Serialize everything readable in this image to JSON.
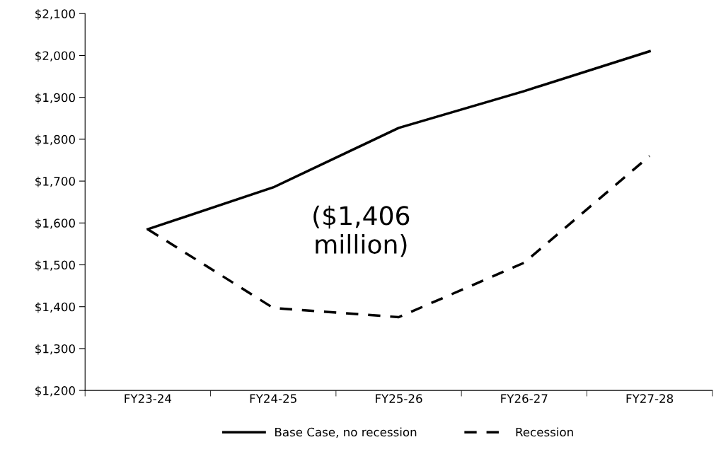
{
  "chart_data": {
    "type": "line",
    "categories": [
      "FY23-24",
      "FY24-25",
      "FY25-26",
      "FY26-27",
      "FY27-28"
    ],
    "series": [
      {
        "name": "Base Case, no recession",
        "color": "#000000",
        "line_style": "solid",
        "values": [
          1585,
          1685,
          1827,
          1915,
          2010
        ]
      },
      {
        "name": "Recession",
        "color": "#000000",
        "line_style": "dashed",
        "values": [
          1585,
          1397,
          1375,
          1505,
          1760
        ]
      }
    ],
    "ylim": [
      1200,
      2100
    ],
    "yticks": [
      {
        "value": 1200,
        "label": "$1,200"
      },
      {
        "value": 1300,
        "label": "$1,300"
      },
      {
        "value": 1400,
        "label": "$1,400"
      },
      {
        "value": 1500,
        "label": "$1,500"
      },
      {
        "value": 1600,
        "label": "$1,600"
      },
      {
        "value": 1700,
        "label": "$1,700"
      },
      {
        "value": 1800,
        "label": "$1,800"
      },
      {
        "value": 1900,
        "label": "$1,900"
      },
      {
        "value": 2000,
        "label": "$2,000"
      },
      {
        "value": 2100,
        "label": "$2,100"
      }
    ],
    "annotations": [
      "($1,406\nmillion)"
    ],
    "grid": false,
    "legend": "bottom",
    "marker": "none"
  }
}
